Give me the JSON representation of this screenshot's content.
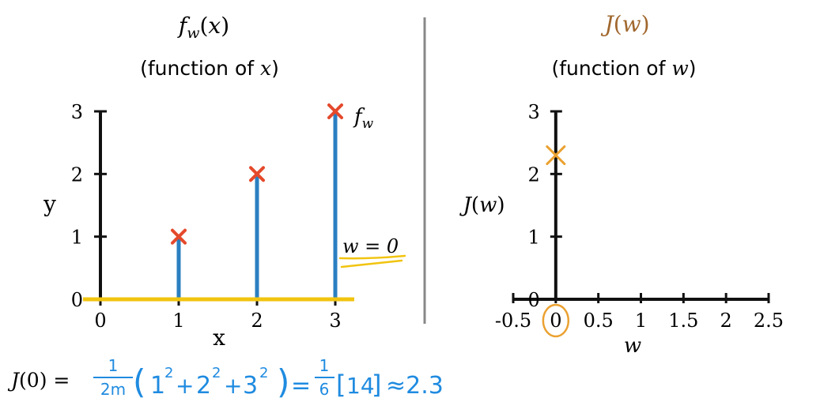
{
  "colors": {
    "axis": "#111111",
    "stem": "#2a7fc1",
    "marker_left": "#e4492b",
    "marker_right": "#eba130",
    "line_yellow": "#f1c40f",
    "annotation_blue": "#1f8be0",
    "right_title": "#a0672d",
    "divider": "#888888"
  },
  "chart_data": [
    {
      "type": "scatter",
      "title": "fw(x)",
      "subtitle": "(function of x)",
      "xlabel": "x",
      "ylabel": "y",
      "x_ticks": [
        "0",
        "1",
        "2",
        "3"
      ],
      "y_ticks": [
        "0",
        "1",
        "2",
        "3"
      ],
      "xlim": [
        0,
        3
      ],
      "ylim": [
        0,
        3
      ],
      "points": [
        {
          "x": 1,
          "y": 1
        },
        {
          "x": 2,
          "y": 2
        },
        {
          "x": 3,
          "y": 3
        }
      ],
      "model_line": {
        "w": 0,
        "label": "w = 0"
      },
      "annotation": "fw",
      "grid": false
    },
    {
      "type": "scatter",
      "title": "J(w)",
      "subtitle": "(function of w)",
      "xlabel": "w",
      "ylabel": "J(w)",
      "x_ticks": [
        "-0.5",
        "0",
        "0.5",
        "1",
        "1.5",
        "2",
        "2.5"
      ],
      "y_ticks": [
        "0",
        "1",
        "2",
        "3"
      ],
      "xlim": [
        -0.5,
        2.5
      ],
      "ylim": [
        0,
        3
      ],
      "points": [
        {
          "x": 0,
          "y": 2.3
        }
      ],
      "highlighted_tick": "0",
      "grid": false
    }
  ],
  "formula": {
    "lhs": "J(0) =",
    "frac1_num": "1",
    "frac1_den": "2m",
    "terms": [
      "1",
      "2",
      "3"
    ],
    "power": "2",
    "plus": "+",
    "eq": "=",
    "frac2_num": "1",
    "frac2_den": "6",
    "bracket_value": "14",
    "approx": "≈2.3"
  }
}
